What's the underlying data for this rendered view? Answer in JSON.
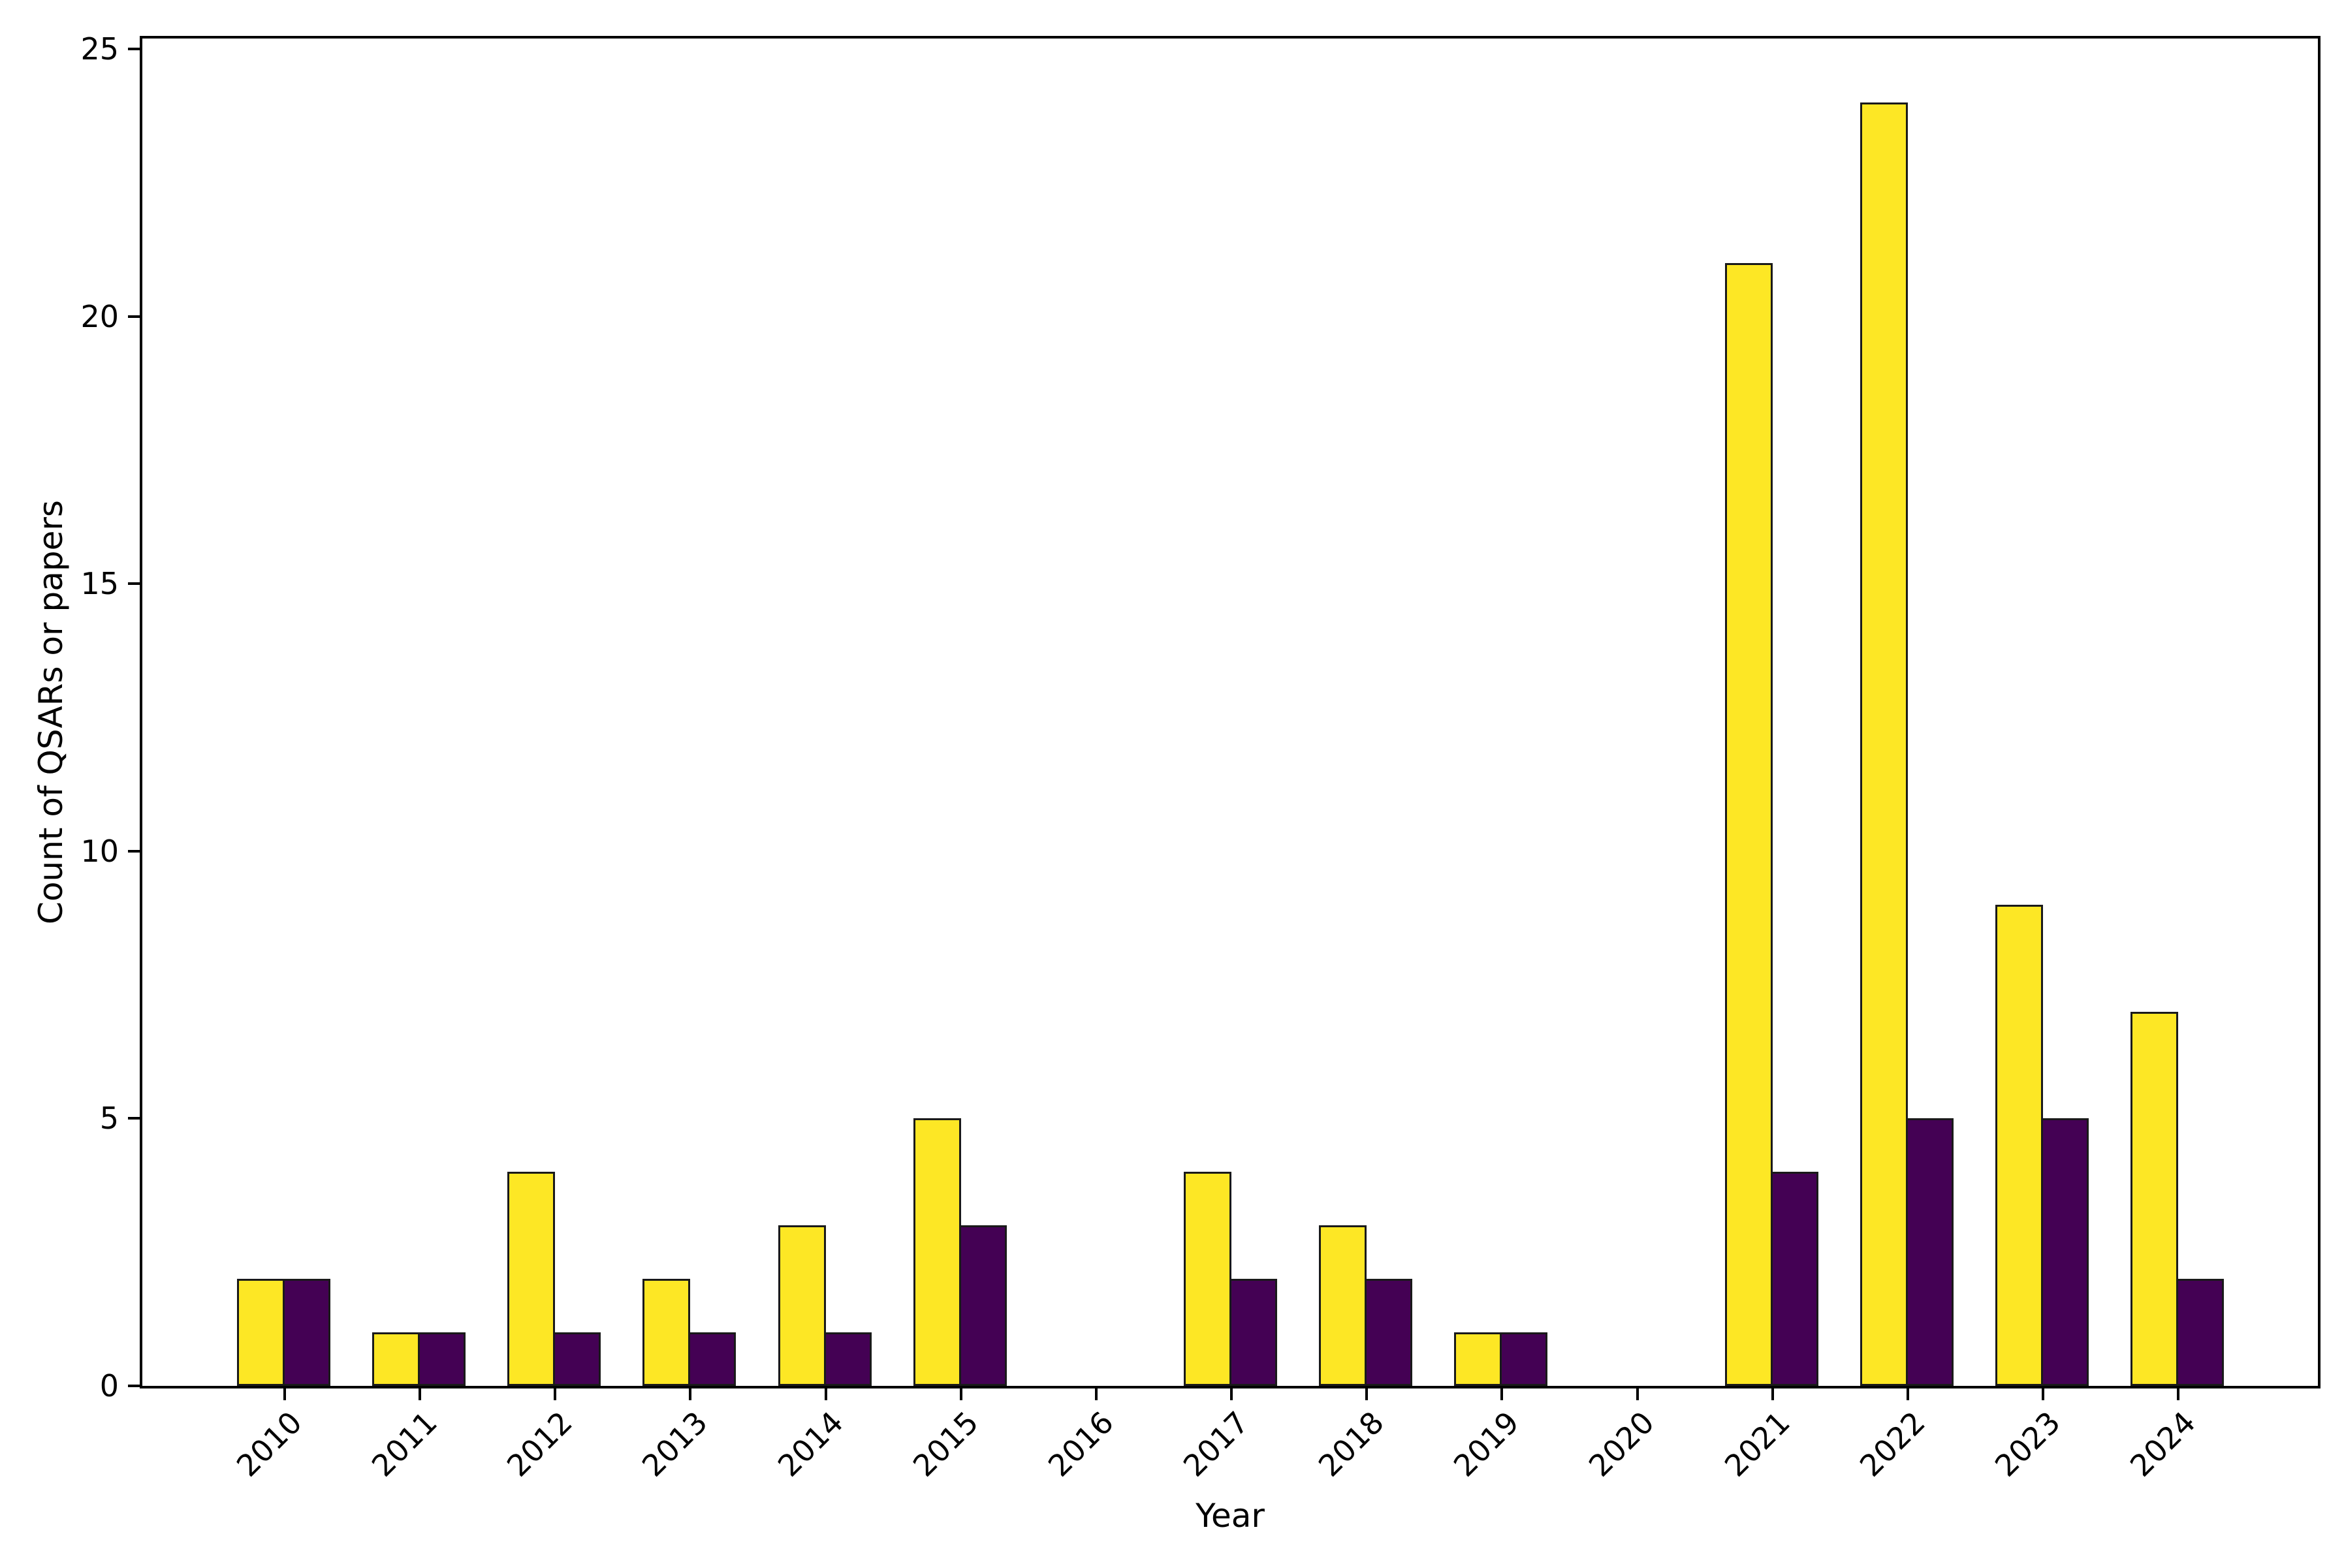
{
  "figure": {
    "background": "#ffffff",
    "spine_color": "#000000"
  },
  "axes": {
    "xlabel": "Year",
    "ylabel": "Count of QSARs or papers"
  },
  "chart_data": {
    "type": "bar",
    "title": "",
    "xlabel": "Year",
    "ylabel": "Count of QSARs or papers",
    "categories": [
      "2010",
      "2011",
      "2012",
      "2013",
      "2014",
      "2015",
      "2016",
      "2017",
      "2018",
      "2019",
      "2020",
      "2021",
      "2022",
      "2023",
      "2024"
    ],
    "series": [
      {
        "name": "yellow-series",
        "color": "#fde725",
        "values": [
          2,
          1,
          4,
          2,
          3,
          5,
          0,
          4,
          3,
          1,
          0,
          21,
          24,
          9,
          7
        ]
      },
      {
        "name": "purple-series",
        "color": "#440154",
        "values": [
          2,
          1,
          1,
          1,
          1,
          3,
          0,
          2,
          2,
          1,
          0,
          4,
          5,
          5,
          2
        ]
      }
    ],
    "yticks": [
      0,
      5,
      10,
      15,
      20,
      25
    ],
    "ylim": [
      0,
      25.2
    ],
    "xtick_rotation": 45,
    "bar_edge_color": "#1a1a1a",
    "grid": false,
    "legend": "none"
  }
}
